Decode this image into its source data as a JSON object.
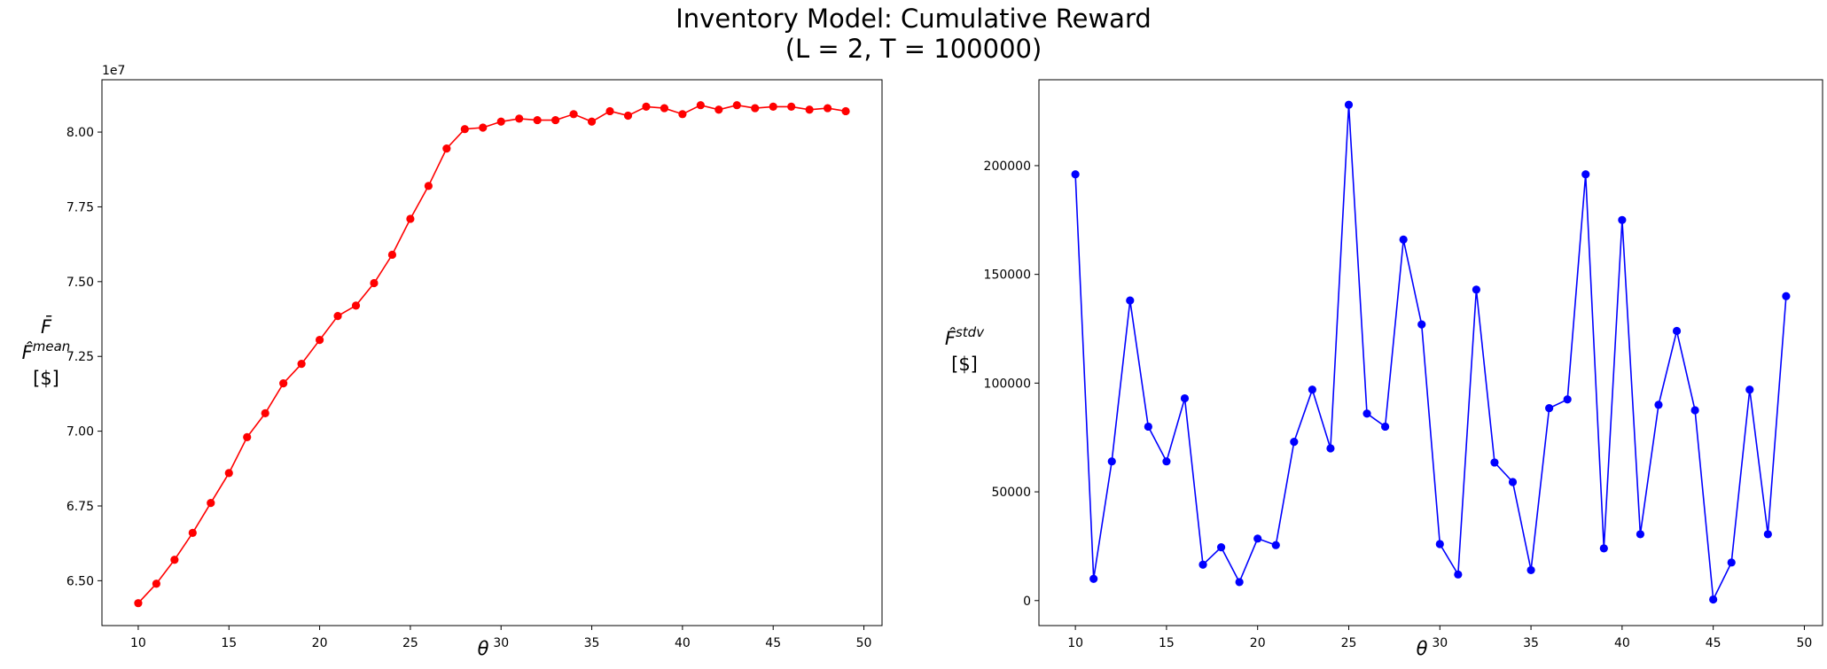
{
  "figure": {
    "title_line1": "Inventory Model: Cumulative Reward",
    "title_line2": "(L = 2, T = 100000)"
  },
  "chart_data": [
    {
      "type": "line",
      "xlabel": "θ",
      "ylabel_lines": [
        "F̄",
        "F̂^mean",
        "[$]"
      ],
      "offset_text": "1e7",
      "xlim": [
        8,
        51
      ],
      "ylim": [
        63.5,
        81.75
      ],
      "xticks": [
        10,
        15,
        20,
        25,
        30,
        35,
        40,
        45,
        50
      ],
      "yticks": [
        65.0,
        67.5,
        70.0,
        72.5,
        75.0,
        77.5,
        80.0
      ],
      "ytick_labels": [
        "6.50",
        "6.75",
        "7.00",
        "7.25",
        "7.50",
        "7.75",
        "8.00"
      ],
      "color": "#ff0000",
      "marker": "circle",
      "x": [
        10,
        11,
        12,
        13,
        14,
        15,
        16,
        17,
        18,
        19,
        20,
        21,
        22,
        23,
        24,
        25,
        26,
        27,
        28,
        29,
        30,
        31,
        32,
        33,
        34,
        35,
        36,
        37,
        38,
        39,
        40,
        41,
        42,
        43,
        44,
        45,
        46,
        47,
        48,
        49
      ],
      "y": [
        64.25,
        64.9,
        65.7,
        66.6,
        67.6,
        68.6,
        69.8,
        70.6,
        71.6,
        72.25,
        73.05,
        73.85,
        74.2,
        74.95,
        75.9,
        77.1,
        78.2,
        79.45,
        80.1,
        80.15,
        80.35,
        80.45,
        80.4,
        80.4,
        80.6,
        80.35,
        80.7,
        80.55,
        80.85,
        80.8,
        80.6,
        80.9,
        80.75,
        80.9,
        80.8,
        80.85,
        80.85,
        80.75,
        80.8,
        80.7
      ]
    },
    {
      "type": "line",
      "xlabel": "θ",
      "ylabel_lines": [
        "F̂^stdv",
        "[$]"
      ],
      "xlim": [
        8,
        51
      ],
      "ylim": [
        -11500,
        239500
      ],
      "xticks": [
        10,
        15,
        20,
        25,
        30,
        35,
        40,
        45,
        50
      ],
      "yticks": [
        0,
        50000,
        100000,
        150000,
        200000
      ],
      "ytick_labels": [
        "0",
        "50000",
        "100000",
        "150000",
        "200000"
      ],
      "color": "#0000ff",
      "marker": "circle",
      "x": [
        10,
        11,
        12,
        13,
        14,
        15,
        16,
        17,
        18,
        19,
        20,
        21,
        22,
        23,
        24,
        25,
        26,
        27,
        28,
        29,
        30,
        31,
        32,
        33,
        34,
        35,
        36,
        37,
        38,
        39,
        40,
        41,
        42,
        43,
        44,
        45,
        46,
        47,
        48,
        49
      ],
      "y": [
        196000,
        10000,
        64000,
        138000,
        80000,
        64000,
        93000,
        16500,
        24500,
        8500,
        28500,
        25500,
        73000,
        97000,
        70000,
        228000,
        86000,
        80000,
        166000,
        127000,
        26000,
        12000,
        143000,
        63500,
        54500,
        14000,
        88500,
        92500,
        196000,
        24000,
        175000,
        30500,
        90000,
        124000,
        87500,
        500,
        17500,
        97000,
        30500,
        140000
      ]
    }
  ]
}
